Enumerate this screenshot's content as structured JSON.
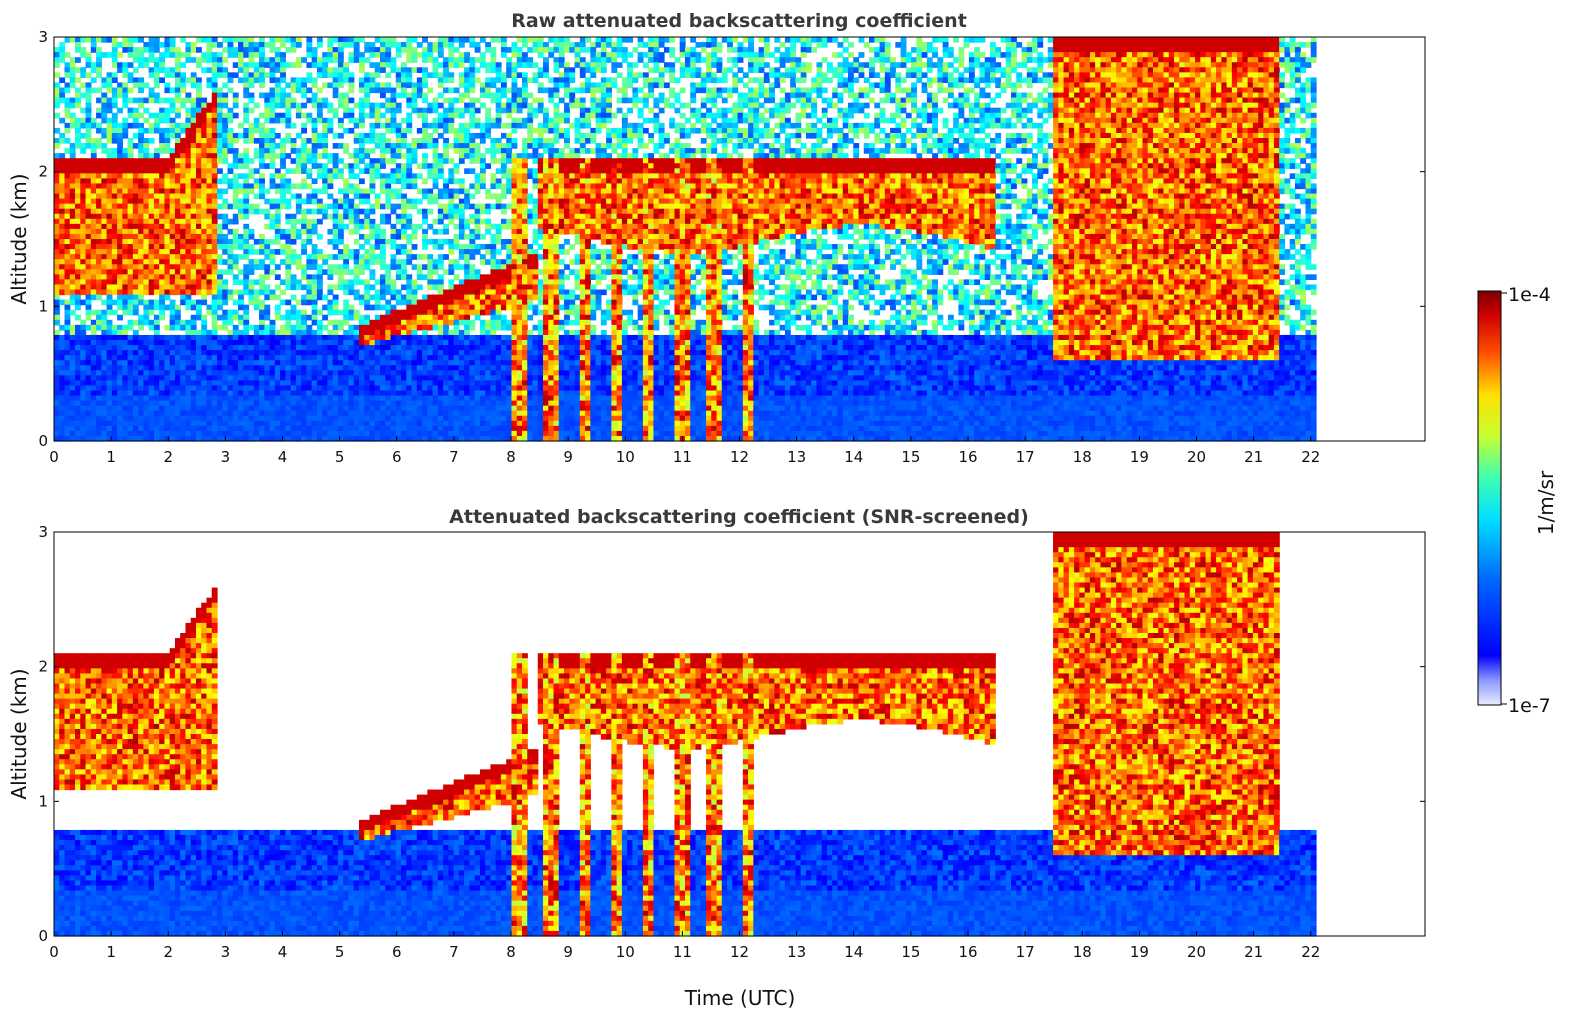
{
  "chart_data": [
    {
      "type": "heatmap",
      "title": "Raw attenuated backscattering coefficient",
      "ylabel": "Altitude (km)",
      "xlabel": "",
      "x_ticks": [
        "0",
        "1",
        "2",
        "3",
        "4",
        "5",
        "6",
        "7",
        "8",
        "9",
        "10",
        "11",
        "12",
        "13",
        "14",
        "15",
        "16",
        "17",
        "18",
        "19",
        "20",
        "21",
        "22"
      ],
      "y_ticks": [
        "0",
        "1",
        "2",
        "3"
      ],
      "xlim": [
        0,
        24
      ],
      "ylim": [
        0,
        3
      ],
      "data_extent_hours": [
        0,
        22.1
      ],
      "screened": false
    },
    {
      "type": "heatmap",
      "title": "Attenuated backscattering coefficient (SNR-screened)",
      "ylabel": "Altitude (km)",
      "xlabel": "Time (UTC)",
      "x_ticks": [
        "0",
        "1",
        "2",
        "3",
        "4",
        "5",
        "6",
        "7",
        "8",
        "9",
        "10",
        "11",
        "12",
        "13",
        "14",
        "15",
        "16",
        "17",
        "18",
        "19",
        "20",
        "21",
        "22"
      ],
      "y_ticks": [
        "0",
        "1",
        "2",
        "3"
      ],
      "xlim": [
        0,
        24
      ],
      "ylim": [
        0,
        3
      ],
      "data_extent_hours": [
        0,
        22.1
      ],
      "screened": true
    }
  ],
  "colorbar": {
    "label": "1/m/sr",
    "max_label": "1e-4",
    "min_label": "1e-7",
    "colormap": "jet",
    "scale": "log"
  }
}
